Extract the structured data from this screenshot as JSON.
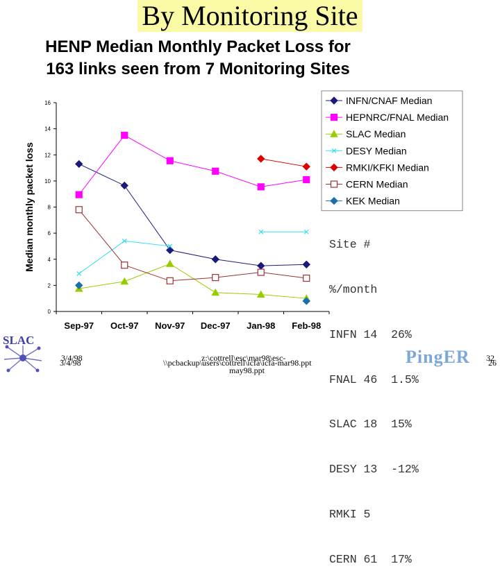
{
  "slide": {
    "title": "By Monitoring Site"
  },
  "chart_data": {
    "type": "line",
    "title_lines": [
      "HENP Median Monthly Packet Loss for",
      "163 links seen from 7 Monitoring Sites"
    ],
    "ylabel": "Median monthly packet loss",
    "xlabel": "",
    "categories": [
      "Sep-97",
      "Oct-97",
      "Nov-97",
      "Dec-97",
      "Jan-98",
      "Feb-98"
    ],
    "ylim": [
      0,
      16
    ],
    "yticks": [
      0,
      2,
      4,
      6,
      8,
      10,
      12,
      14,
      16
    ],
    "grid": false,
    "legend_position": "top-right",
    "series": [
      {
        "name": "INFN/CNAF Median",
        "color": "#1a1a7a",
        "marker": "diamond",
        "fill": true,
        "values": [
          11.3,
          9.65,
          4.7,
          4.0,
          3.5,
          3.6
        ]
      },
      {
        "name": "HEPNRC/FNAL Median",
        "color": "#ff00ff",
        "marker": "square",
        "fill": true,
        "values": [
          8.95,
          13.5,
          11.55,
          10.75,
          9.55,
          10.1
        ]
      },
      {
        "name": "SLAC Median",
        "color": "#99cc00",
        "marker": "triangle",
        "fill": true,
        "values": [
          1.75,
          2.3,
          3.65,
          1.45,
          1.3,
          1.0
        ]
      },
      {
        "name": "DESY Median",
        "color": "#33ddee",
        "marker": "x",
        "fill": false,
        "values": [
          2.9,
          5.4,
          5.0,
          null,
          6.1,
          6.1
        ]
      },
      {
        "name": "RMKI/KFKI Median",
        "color": "#dd0000",
        "marker": "diamond",
        "fill": true,
        "values": [
          null,
          null,
          null,
          null,
          11.7,
          11.1
        ]
      },
      {
        "name": "CERN Median",
        "color": "#993333",
        "marker": "square",
        "fill": false,
        "values": [
          7.8,
          3.55,
          2.35,
          2.6,
          3.0,
          2.55
        ]
      },
      {
        "name": "KEK Median",
        "color": "#1a6faf",
        "marker": "diamond",
        "fill": true,
        "values": [
          2.0,
          null,
          null,
          null,
          null,
          0.8
        ]
      }
    ]
  },
  "site_table": {
    "rows": [
      "Site #",
      "%/month",
      "INFN 14  26%",
      "FNAL 46  1.5%",
      "SLAC 18  15%",
      "DESY 13  -12%",
      "RMKI 5",
      "CERN 61  17%"
    ]
  },
  "footer": {
    "date_a": "3/4/98",
    "date_b": "3/4/98",
    "path_a": "z:\\cottrell\\esc\\mar98\\esc-",
    "path_a2": "may98.ppt",
    "path_b": "\\\\pcbackup\\users\\cottrell\\icfa\\icfa-mar98.ppt",
    "page_a": "32",
    "page_b": "26",
    "logo_left": "SLAC",
    "logo_right": "PingER"
  }
}
